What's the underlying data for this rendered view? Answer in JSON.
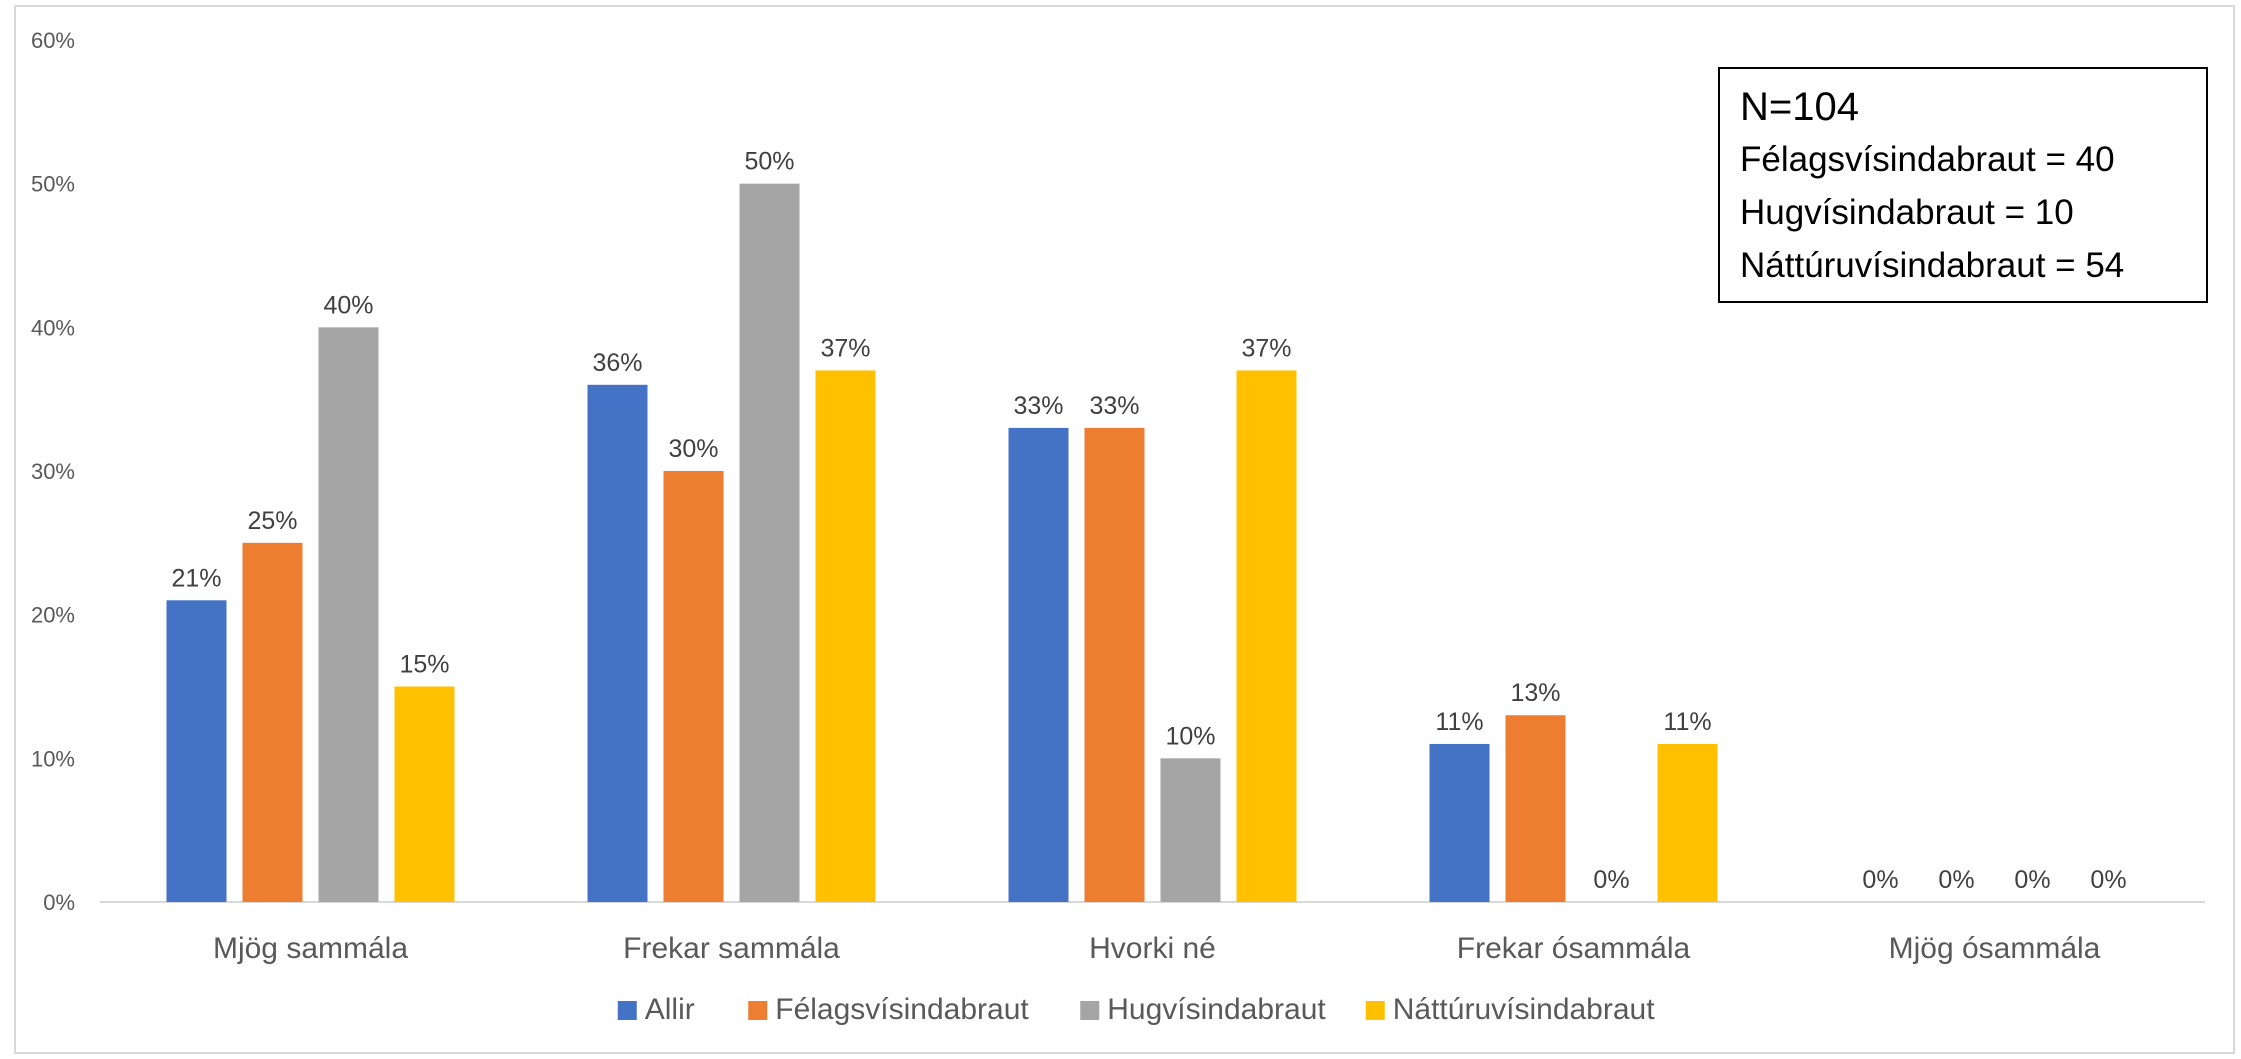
{
  "chart_data": {
    "type": "bar",
    "categories": [
      "Mjög sammála",
      "Frekar sammála",
      "Hvorki né",
      "Frekar ósammála",
      "Mjög ósammála"
    ],
    "series": [
      {
        "name": "Allir",
        "color": "#4472c4",
        "values": [
          21,
          36,
          33,
          11,
          0
        ]
      },
      {
        "name": "Félagsvísindabraut",
        "color": "#ed7d31",
        "values": [
          25,
          30,
          33,
          13,
          0
        ]
      },
      {
        "name": "Hugvísindabraut",
        "color": "#a5a5a5",
        "values": [
          40,
          50,
          10,
          0,
          0
        ]
      },
      {
        "name": "Náttúruvísindabraut",
        "color": "#ffc000",
        "values": [
          15,
          37,
          37,
          11,
          0
        ]
      }
    ],
    "ylim": [
      0,
      60
    ],
    "yticks": [
      "0%",
      "10%",
      "20%",
      "30%",
      "40%",
      "50%",
      "60%"
    ],
    "value_suffix": "%",
    "grid": false,
    "legend_position": "bottom"
  },
  "annotation": {
    "total": "N=104",
    "lines": [
      "Félagsvísindabraut = 40",
      "Hugvísindabraut = 10",
      "Náttúruvísindabraut = 54"
    ]
  }
}
